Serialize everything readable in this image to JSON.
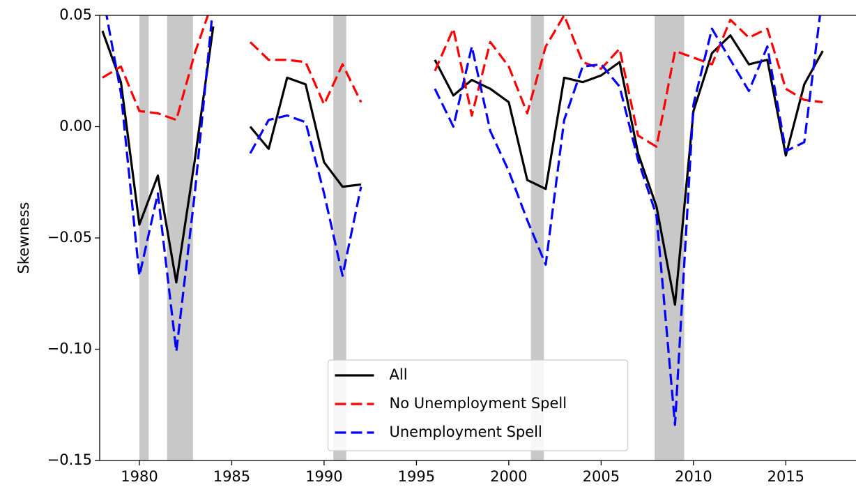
{
  "chart_data": {
    "type": "line",
    "y_label": "Skewness",
    "x": [
      1978,
      1979,
      1980,
      1981,
      1982,
      1983,
      1984,
      1985,
      1986,
      1987,
      1988,
      1989,
      1990,
      1991,
      1992,
      1993,
      1994,
      1995,
      1996,
      1997,
      1998,
      1999,
      2000,
      2001,
      2002,
      2003,
      2004,
      2005,
      2006,
      2007,
      2008,
      2009,
      2010,
      2011,
      2012,
      2013,
      2014,
      2015,
      2016,
      2017
    ],
    "series": [
      {
        "name": "All",
        "color": "#000000",
        "dashed": false,
        "values": [
          0.043,
          0.02,
          -0.044,
          -0.022,
          -0.07,
          -0.015,
          0.045,
          null,
          0.0,
          -0.01,
          0.022,
          0.019,
          -0.016,
          -0.027,
          -0.026,
          null,
          null,
          null,
          0.03,
          0.014,
          0.021,
          0.017,
          0.011,
          -0.024,
          -0.028,
          0.022,
          0.02,
          0.023,
          0.029,
          -0.012,
          -0.036,
          -0.08,
          0.007,
          0.033,
          0.041,
          0.028,
          0.03,
          -0.013,
          0.019,
          0.034
        ]
      },
      {
        "name": "No Unemployment Spell",
        "color": "#ff0000",
        "dashed": true,
        "values": [
          0.022,
          0.027,
          0.007,
          0.006,
          0.003,
          0.033,
          0.057,
          null,
          0.038,
          0.03,
          0.03,
          0.029,
          0.01,
          0.028,
          0.011,
          null,
          null,
          null,
          0.025,
          0.044,
          0.005,
          0.038,
          0.027,
          0.006,
          0.036,
          0.05,
          0.029,
          0.026,
          0.035,
          -0.004,
          -0.009,
          0.034,
          0.031,
          0.028,
          0.048,
          0.04,
          0.044,
          0.017,
          0.012,
          0.011
        ]
      },
      {
        "name": "Unemployment Spell",
        "color": "#0000ff",
        "dashed": true,
        "values": [
          0.06,
          0.015,
          -0.067,
          -0.03,
          -0.101,
          -0.03,
          0.055,
          null,
          -0.012,
          0.003,
          0.005,
          0.002,
          -0.03,
          -0.067,
          -0.027,
          null,
          null,
          null,
          0.017,
          0.0,
          0.036,
          -0.002,
          -0.02,
          -0.042,
          -0.062,
          0.003,
          0.027,
          0.028,
          0.018,
          -0.015,
          -0.04,
          -0.134,
          0.01,
          0.044,
          0.03,
          0.016,
          0.036,
          -0.011,
          -0.007,
          0.06
        ]
      }
    ],
    "shaded_regions": [
      [
        1980.0,
        1980.5
      ],
      [
        1981.5,
        1982.9
      ],
      [
        1990.5,
        1991.2
      ],
      [
        2001.2,
        2001.9
      ],
      [
        2007.9,
        2009.5
      ]
    ],
    "shaded_color": "#c8c8c8",
    "xlim": [
      1977.85,
      2018.8
    ],
    "ylim": [
      -0.15,
      0.05
    ],
    "xticks": [
      1980,
      1985,
      1990,
      1995,
      2000,
      2005,
      2010,
      2015
    ],
    "yticks": [
      {
        "value": -0.15,
        "label": "−0.15"
      },
      {
        "value": -0.1,
        "label": "−0.10"
      },
      {
        "value": -0.05,
        "label": "−0.05"
      },
      {
        "value": 0,
        "label": "0.00"
      },
      0.05
    ],
    "legend": "lower center"
  }
}
